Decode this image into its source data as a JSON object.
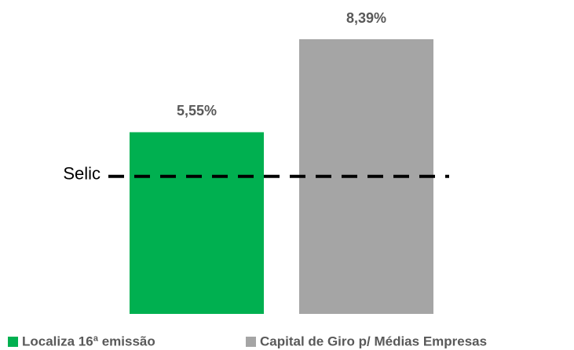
{
  "chart_data": {
    "type": "bar",
    "categories": [
      "Localiza 16ª emissão",
      "Capital de Giro p/ Médias Empresas"
    ],
    "values": [
      5.55,
      8.39
    ],
    "value_labels": [
      "5,55%",
      "8,39%"
    ],
    "colors": [
      "#00b050",
      "#a5a5a5"
    ],
    "reference_line": {
      "label": "Selic",
      "value": 4.2,
      "color": "#000000"
    },
    "legend": "bottom"
  }
}
